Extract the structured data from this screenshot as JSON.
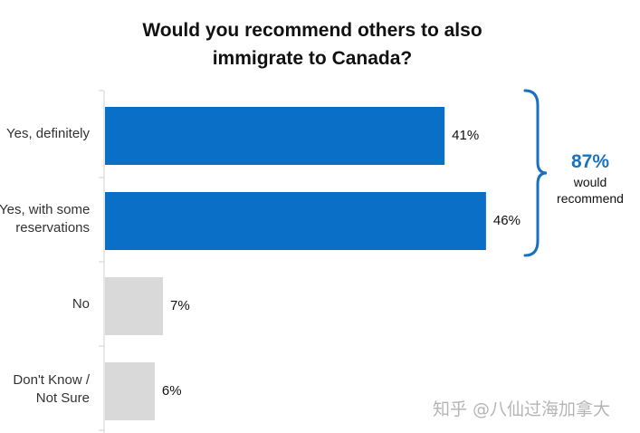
{
  "chart_data": {
    "type": "bar",
    "orientation": "horizontal",
    "title_lines": [
      "Would you recommend others to also",
      "immigrate to Canada?"
    ],
    "categories": [
      [
        "Yes, definitely"
      ],
      [
        "Yes, with some",
        "reservations"
      ],
      [
        "No"
      ],
      [
        "Don't Know /",
        "Not Sure"
      ]
    ],
    "values": [
      41,
      46,
      7,
      6
    ],
    "value_labels": [
      "41%",
      "46%",
      "7%",
      "6%"
    ],
    "bar_colors": [
      "#0a6fc7",
      "#0a6fc7",
      "#d9d9d9",
      "#d9d9d9"
    ],
    "xlim": [
      0,
      100
    ],
    "grid": false,
    "legend": "none",
    "callout": {
      "value": "87%",
      "text_lines": [
        "would",
        "recommend"
      ],
      "color": "#1a73c0",
      "bracket_color": "#1a6fbf"
    }
  },
  "watermark": "知乎 @八仙过海加拿大"
}
